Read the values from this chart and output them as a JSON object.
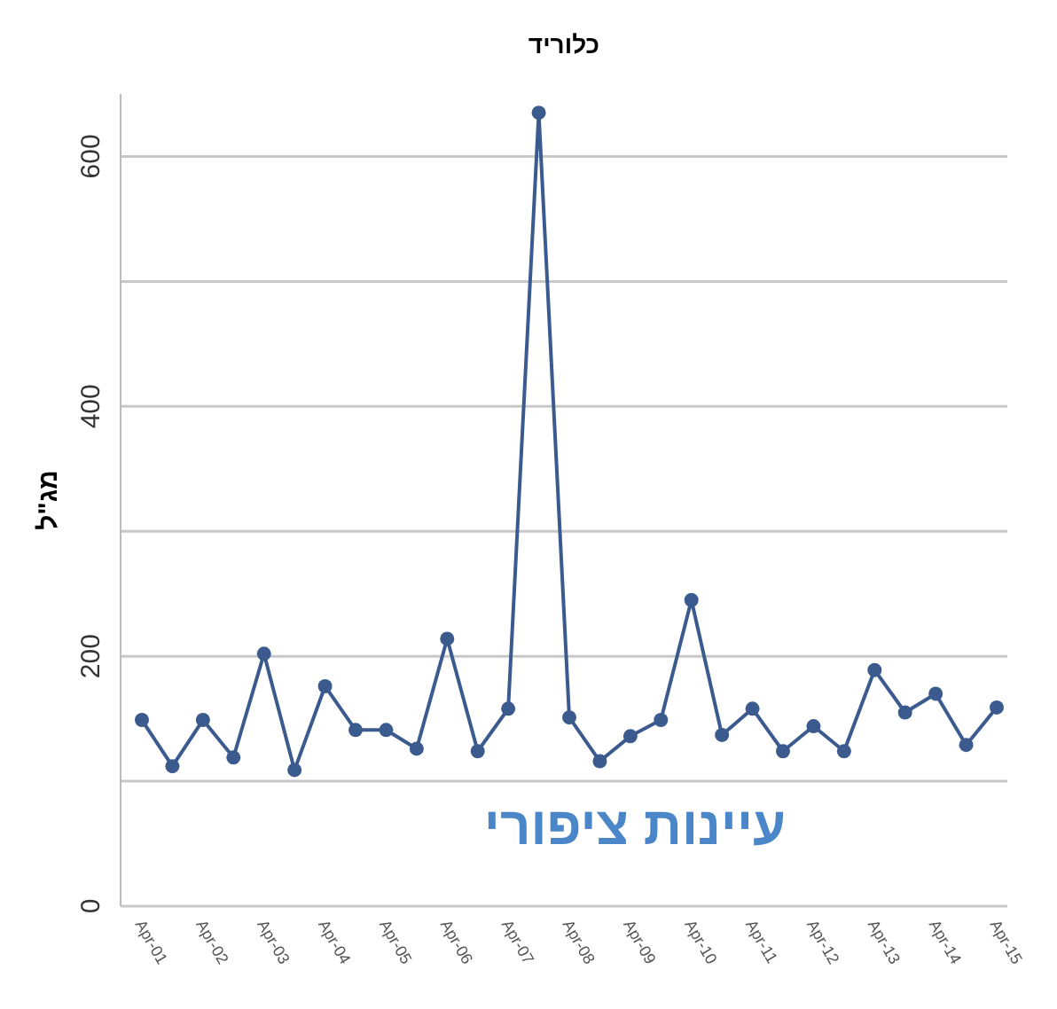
{
  "chart_data": {
    "type": "line",
    "title": "כלוריד",
    "ylabel": "מג\"ל",
    "annotations": [
      "עיינות ציפורי"
    ],
    "categories": [
      "Apr-01",
      null,
      "Apr-02",
      null,
      "Apr-03",
      null,
      "Apr-04",
      null,
      "Apr-05",
      null,
      "Apr-06",
      null,
      "Apr-07",
      null,
      "Apr-08",
      null,
      "Apr-09",
      null,
      "Apr-10",
      null,
      "Apr-11",
      null,
      "Apr-12",
      null,
      "Apr-13",
      null,
      "Apr-14",
      null,
      "Apr-15"
    ],
    "series": [
      {
        "color": "#3b5b8f",
        "values": [
          149,
          112,
          149,
          119,
          202,
          109,
          176,
          141,
          141,
          126,
          214,
          124,
          158,
          635,
          151,
          116,
          136,
          149,
          245,
          137,
          158,
          124,
          144,
          124,
          189,
          155,
          170,
          129,
          159
        ]
      }
    ],
    "ylim": [
      0,
      650
    ],
    "yticks": [
      0,
      {
        "value": 100,
        "label": null
      },
      200,
      {
        "value": 300,
        "label": null
      },
      400,
      {
        "value": 500,
        "label": null
      },
      600
    ],
    "grid": "y",
    "marker": "circle",
    "line_style": "solid"
  }
}
